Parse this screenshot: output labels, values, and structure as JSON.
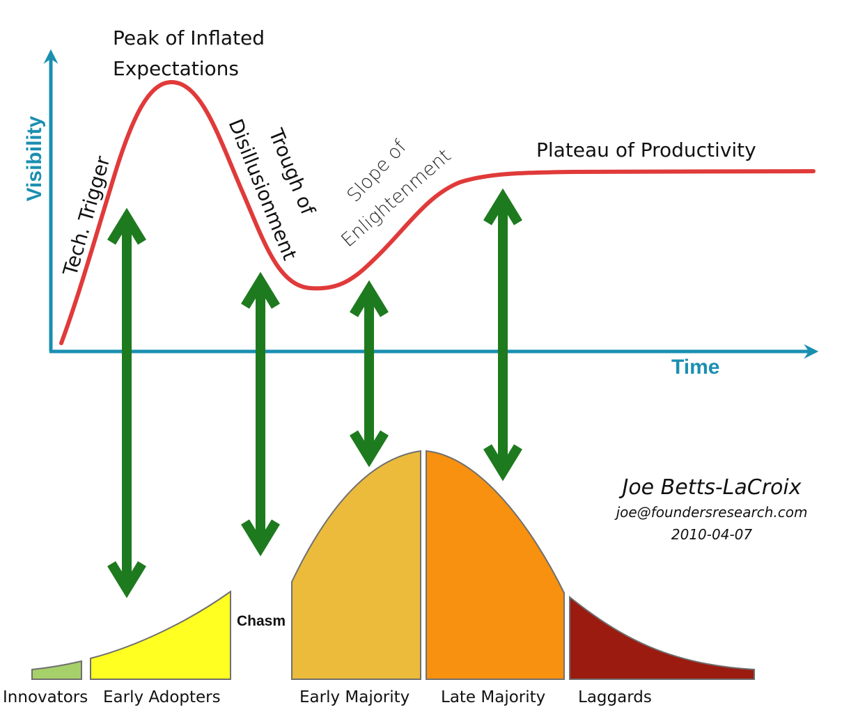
{
  "axes": {
    "y_label": "Visibility",
    "x_label": "Time",
    "color": "#1b8fb0"
  },
  "hype_cycle": {
    "curve_color": "#e03a3a",
    "phases": {
      "trigger": "Tech. Trigger",
      "peak_line1": "Peak of Inflated",
      "peak_line2": "Expectations",
      "trough_line1": "Trough of",
      "trough_line2": "Disillusionment",
      "slope_line1": "Slope of",
      "slope_line2": "Enlightenment",
      "plateau": "Plateau of Productivity"
    }
  },
  "arrows": {
    "color": "#1e7a1e",
    "count": 4
  },
  "adoption_curve": {
    "chasm_label": "Chasm",
    "segments": [
      {
        "name": "Innovators",
        "color": "#a6d06a"
      },
      {
        "name": "Early Adopters",
        "color": "#ffff22"
      },
      {
        "name": "Early Majority",
        "color": "#ecbb3c"
      },
      {
        "name": "Late Majority",
        "color": "#f7910f"
      },
      {
        "name": "Laggards",
        "color": "#9b1b10"
      }
    ]
  },
  "author": {
    "name": "Joe Betts-LaCroix",
    "email": "joe@foundersresearch.com",
    "date": "2010-04-07"
  }
}
